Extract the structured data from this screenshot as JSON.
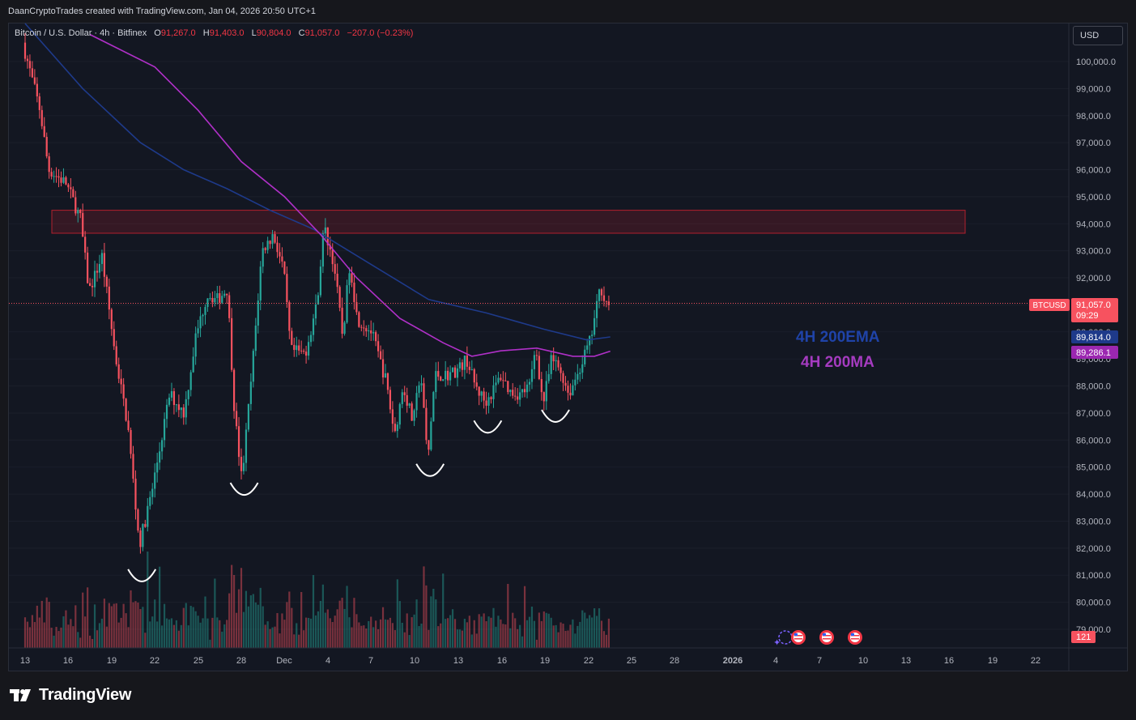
{
  "header": {
    "attribution": "DaanCryptoTrades created with TradingView.com, Jan 04, 2026 20:50 UTC+1"
  },
  "legend": {
    "symbol": "Bitcoin / U.S. Dollar · 4h · Bitfinex",
    "open_label": "O",
    "open": "91,267.0",
    "high_label": "H",
    "high": "91,403.0",
    "low_label": "L",
    "low": "90,804.0",
    "close_label": "C",
    "close": "91,057.0",
    "change": "−207.0 (−0.23%)"
  },
  "currency_button": "USD",
  "price_tag": {
    "symbol": "BTCUSD",
    "price": "91,057.0",
    "countdown": "09:29"
  },
  "ema_tag": "89,814.0",
  "ma_tag": "89,286.1",
  "volume_tag": "121",
  "annotations": {
    "ema_label": "4H 200EMA",
    "ma_label": "4H 200MA"
  },
  "brand": "TradingView",
  "colors": {
    "up": "#26a69a",
    "down": "#f7525f",
    "ema": "#1e3a8a",
    "ma": "#b030c8",
    "zone": "#b2202e",
    "background": "#131722"
  },
  "chart_data": {
    "type": "candlestick",
    "timeframe": "4h",
    "x_ticks": [
      "13",
      "16",
      "19",
      "22",
      "25",
      "28",
      "Dec",
      "4",
      "7",
      "10",
      "13",
      "16",
      "19",
      "22",
      "25",
      "28",
      "2026",
      "4",
      "7",
      "10",
      "13",
      "16",
      "19",
      "22"
    ],
    "y_ticks": [
      "100,000.0",
      "99,000.0",
      "98,000.0",
      "97,000.0",
      "96,000.0",
      "95,000.0",
      "94,000.0",
      "93,000.0",
      "92,000.0",
      "91,000.0",
      "90,000.0",
      "89,000.0",
      "88,000.0",
      "87,000.0",
      "86,000.0",
      "85,000.0",
      "84,000.0",
      "83,000.0",
      "82,000.0",
      "81,000.0",
      "80,000.0",
      "79,000.0"
    ],
    "ylim": [
      78600,
      100700
    ],
    "resistance_zone": {
      "low": 93650,
      "high": 94500
    },
    "anchors": [
      {
        "day": 0,
        "price": 100700
      },
      {
        "day": 1.2,
        "price": 98200
      },
      {
        "day": 1.8,
        "price": 96000
      },
      {
        "day": 3,
        "price": 95500
      },
      {
        "day": 4,
        "price": 94200
      },
      {
        "day": 4.6,
        "price": 91500
      },
      {
        "day": 5.5,
        "price": 92800
      },
      {
        "day": 6.4,
        "price": 89200
      },
      {
        "day": 7.3,
        "price": 86500
      },
      {
        "day": 8.1,
        "price": 82100
      },
      {
        "day": 9,
        "price": 84200
      },
      {
        "day": 10.2,
        "price": 87700
      },
      {
        "day": 11.2,
        "price": 87000
      },
      {
        "day": 12,
        "price": 89800
      },
      {
        "day": 12.8,
        "price": 91400
      },
      {
        "day": 13.5,
        "price": 91200
      },
      {
        "day": 14.2,
        "price": 91600
      },
      {
        "day": 14.7,
        "price": 87000
      },
      {
        "day": 15.2,
        "price": 84500
      },
      {
        "day": 15.9,
        "price": 88500
      },
      {
        "day": 16.6,
        "price": 93000
      },
      {
        "day": 17.4,
        "price": 93600
      },
      {
        "day": 18.1,
        "price": 92300
      },
      {
        "day": 18.6,
        "price": 89300
      },
      {
        "day": 19.6,
        "price": 89200
      },
      {
        "day": 20.4,
        "price": 91000
      },
      {
        "day": 20.9,
        "price": 93900
      },
      {
        "day": 21.6,
        "price": 92500
      },
      {
        "day": 22.2,
        "price": 89800
      },
      {
        "day": 22.7,
        "price": 92600
      },
      {
        "day": 23.2,
        "price": 90500
      },
      {
        "day": 24.2,
        "price": 90000
      },
      {
        "day": 25.2,
        "price": 88200
      },
      {
        "day": 25.8,
        "price": 86200
      },
      {
        "day": 26.4,
        "price": 88000
      },
      {
        "day": 27.1,
        "price": 86600
      },
      {
        "day": 27.6,
        "price": 88600
      },
      {
        "day": 28.1,
        "price": 85200
      },
      {
        "day": 28.6,
        "price": 88400
      },
      {
        "day": 29.4,
        "price": 88400
      },
      {
        "day": 30.2,
        "price": 88600
      },
      {
        "day": 30.8,
        "price": 89000
      },
      {
        "day": 31.4,
        "price": 88000
      },
      {
        "day": 32.1,
        "price": 87400
      },
      {
        "day": 32.6,
        "price": 87800
      },
      {
        "day": 33.2,
        "price": 88400
      },
      {
        "day": 33.8,
        "price": 87800
      },
      {
        "day": 34.5,
        "price": 87700
      },
      {
        "day": 35.2,
        "price": 88000
      },
      {
        "day": 35.6,
        "price": 89500
      },
      {
        "day": 36.1,
        "price": 87300
      },
      {
        "day": 36.7,
        "price": 89000
      },
      {
        "day": 37.3,
        "price": 88600
      },
      {
        "day": 37.9,
        "price": 87700
      },
      {
        "day": 38.6,
        "price": 88600
      },
      {
        "day": 39.4,
        "price": 89700
      },
      {
        "day": 40.1,
        "price": 91700
      },
      {
        "day": 40.5,
        "price": 91057
      }
    ],
    "ema_200": [
      {
        "day": 0,
        "price": 104200
      },
      {
        "day": 4,
        "price": 99000
      },
      {
        "day": 8,
        "price": 97000
      },
      {
        "day": 11,
        "price": 96000
      },
      {
        "day": 14,
        "price": 95300
      },
      {
        "day": 17,
        "price": 94500
      },
      {
        "day": 20,
        "price": 93800
      },
      {
        "day": 24,
        "price": 92500
      },
      {
        "day": 28,
        "price": 91200
      },
      {
        "day": 32,
        "price": 90700
      },
      {
        "day": 36,
        "price": 90100
      },
      {
        "day": 39,
        "price": 89700
      },
      {
        "day": 40.6,
        "price": 89814
      }
    ],
    "ma_200": [
      {
        "day": 4.5,
        "price": 101000
      },
      {
        "day": 9,
        "price": 99800
      },
      {
        "day": 12,
        "price": 98200
      },
      {
        "day": 15,
        "price": 96300
      },
      {
        "day": 18,
        "price": 95000
      },
      {
        "day": 20.5,
        "price": 93600
      },
      {
        "day": 23,
        "price": 92000
      },
      {
        "day": 26,
        "price": 90500
      },
      {
        "day": 29,
        "price": 89600
      },
      {
        "day": 31,
        "price": 89100
      },
      {
        "day": 33,
        "price": 89300
      },
      {
        "day": 35.5,
        "price": 89400
      },
      {
        "day": 38,
        "price": 89100
      },
      {
        "day": 39.5,
        "price": 89100
      },
      {
        "day": 40.6,
        "price": 89286
      }
    ],
    "bottom_markers": [
      {
        "day": 8.1,
        "price": 80800
      },
      {
        "day": 15.2,
        "price": 84000
      },
      {
        "day": 28.1,
        "price": 84700
      },
      {
        "day": 32.1,
        "price": 86300
      },
      {
        "day": 36.8,
        "price": 86700
      }
    ]
  }
}
